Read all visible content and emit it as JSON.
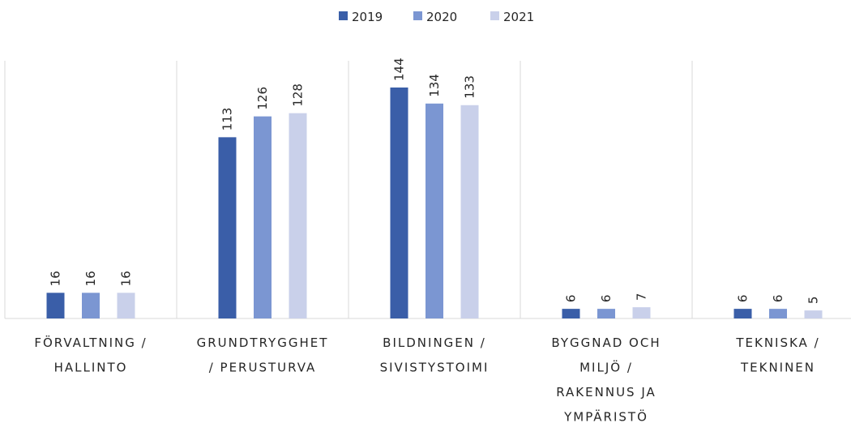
{
  "chart_data": {
    "type": "bar",
    "categories": [
      [
        "FÖRVALTNING /",
        "HALLINTO"
      ],
      [
        "GRUNDTRYGGHET",
        "/ PERUSTURVA"
      ],
      [
        "BILDNINGEN /",
        "SIVISTYSTOIMI"
      ],
      [
        "BYGGNAD OCH",
        "MILJÖ /",
        "RAKENNUS JA",
        "YMPÄRISTÖ"
      ],
      [
        "TEKNISKA /",
        "TEKNINEN"
      ]
    ],
    "series": [
      {
        "name": "2019",
        "color": "#3a5ea8",
        "values": [
          16,
          113,
          144,
          6,
          6
        ]
      },
      {
        "name": "2020",
        "color": "#7b96d2",
        "values": [
          16,
          126,
          134,
          6,
          6
        ]
      },
      {
        "name": "2021",
        "color": "#c9d0ea",
        "values": [
          16,
          128,
          133,
          7,
          5
        ]
      }
    ],
    "legend": "top"
  }
}
